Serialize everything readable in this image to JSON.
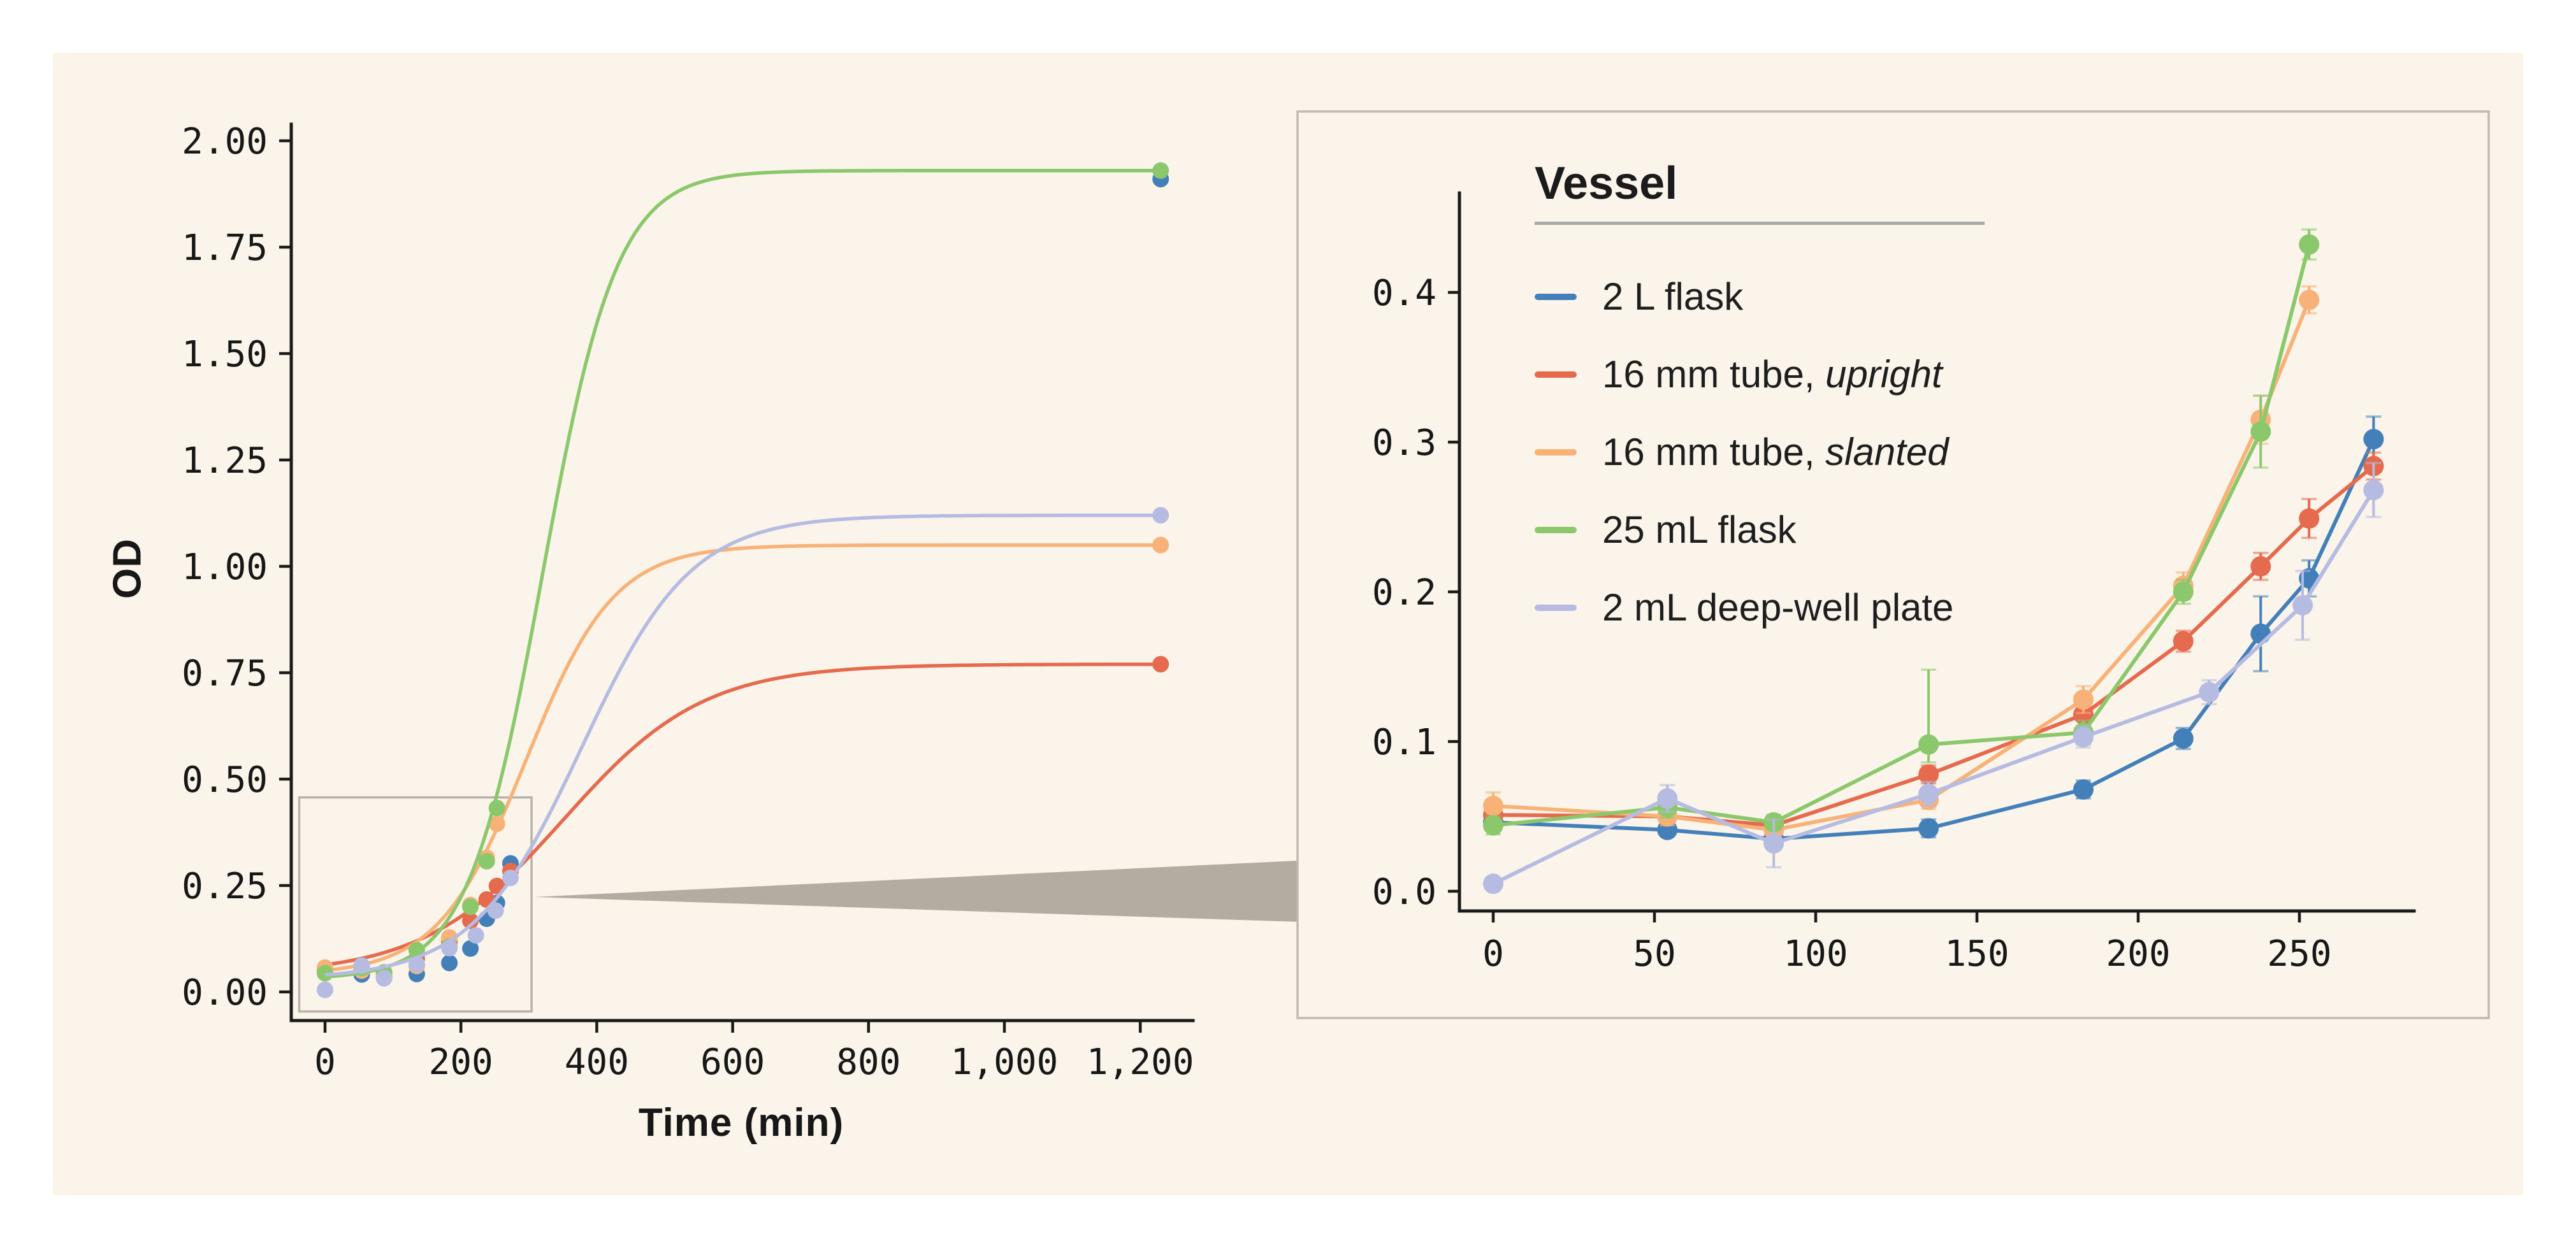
{
  "figure": {
    "background": "#FFFFFF",
    "panel_color": "#FAF4EA",
    "text_color": "#171717",
    "frame_color": "#1A1A1A",
    "zoom_box_color": "#B8B2A9",
    "connector_color": "#B3ACA1",
    "inset_border_color": "#C0BAB1",
    "legend_rule_color": "#A8A8A8"
  },
  "legend": {
    "title": "Vessel",
    "items": [
      {
        "label": "2 L flask",
        "italic": "",
        "color": "#4380BA"
      },
      {
        "label": "16 mm tube, ",
        "italic": "upright",
        "color": "#E66A4D"
      },
      {
        "label": "16 mm tube, ",
        "italic": "slanted",
        "color": "#F8B277"
      },
      {
        "label": "25 mL flask",
        "italic": "",
        "color": "#8BC86C"
      },
      {
        "label": "2 mL deep-well plate",
        "italic": "",
        "color": "#B6BBE2"
      }
    ]
  },
  "chart_data": [
    {
      "id": "main-growth-curves",
      "type": "line",
      "title": "",
      "xlabel": "Time (min)",
      "ylabel": "OD",
      "xlim": [
        -60,
        1280
      ],
      "ylim": [
        -0.07,
        2.08
      ],
      "grid": false,
      "x_ticks": [
        {
          "v": 0,
          "label": "0"
        },
        {
          "v": 200,
          "label": "200"
        },
        {
          "v": 400,
          "label": "400"
        },
        {
          "v": 600,
          "label": "600"
        },
        {
          "v": 800,
          "label": "800"
        },
        {
          "v": 1000,
          "label": "1,000"
        },
        {
          "v": 1200,
          "label": "1,200"
        }
      ],
      "y_ticks": [
        {
          "v": 0.0,
          "label": "0.00"
        },
        {
          "v": 0.25,
          "label": "0.25"
        },
        {
          "v": 0.5,
          "label": "0.50"
        },
        {
          "v": 0.75,
          "label": "0.75"
        },
        {
          "v": 1.0,
          "label": "1.00"
        },
        {
          "v": 1.25,
          "label": "1.25"
        },
        {
          "v": 1.5,
          "label": "1.50"
        },
        {
          "v": 1.75,
          "label": "1.75"
        },
        {
          "v": 2.0,
          "label": "2.00"
        }
      ],
      "zoom_rect": {
        "t_min": -38,
        "t_max": 304,
        "od_min": -0.046,
        "od_max": 0.457
      },
      "series": [
        {
          "name": "2 L flask",
          "color": "#4380BA",
          "points": [
            [
              0,
              0.046
            ],
            [
              54,
              0.041
            ],
            [
              87,
              0.035
            ],
            [
              135,
              0.042
            ],
            [
              183,
              0.068
            ],
            [
              214,
              0.102
            ],
            [
              238,
              0.172
            ],
            [
              253,
              0.209
            ],
            [
              273,
              0.302
            ],
            [
              1230,
              1.91
            ]
          ],
          "fit": null
        },
        {
          "name": "16 mm tube, upright",
          "color": "#E66A4D",
          "points": [
            [
              0,
              0.051
            ],
            [
              54,
              0.05
            ],
            [
              87,
              0.044
            ],
            [
              135,
              0.078
            ],
            [
              183,
              0.118
            ],
            [
              214,
              0.167
            ],
            [
              238,
              0.217
            ],
            [
              253,
              0.249
            ],
            [
              273,
              0.284
            ],
            [
              1230,
              0.77
            ]
          ],
          "fit": {
            "base": 0.04,
            "amp": 0.73,
            "mid": 351,
            "k": 0.0097
          }
        },
        {
          "name": "16 mm tube, slanted",
          "color": "#F8B277",
          "points": [
            [
              0,
              0.057
            ],
            [
              54,
              0.05
            ],
            [
              87,
              0.041
            ],
            [
              135,
              0.061
            ],
            [
              183,
              0.128
            ],
            [
              214,
              0.204
            ],
            [
              238,
              0.315
            ],
            [
              253,
              0.395
            ],
            [
              1230,
              1.05
            ]
          ],
          "fit": {
            "base": 0.04,
            "amp": 1.01,
            "mid": 296,
            "k": 0.0154
          }
        },
        {
          "name": "25 mL flask",
          "color": "#8BC86C",
          "points": [
            [
              0,
              0.044
            ],
            [
              54,
              0.056
            ],
            [
              87,
              0.046
            ],
            [
              135,
              0.098
            ],
            [
              183,
              0.106
            ],
            [
              214,
              0.2
            ],
            [
              238,
              0.307
            ],
            [
              253,
              0.432
            ],
            [
              1230,
              1.93
            ]
          ],
          "fit": {
            "base": 0.03,
            "amp": 1.9,
            "mid": 320,
            "k": 0.0182
          }
        },
        {
          "name": "2 mL deep-well plate",
          "color": "#B6BBE2",
          "points": [
            [
              0,
              0.005
            ],
            [
              54,
              0.062
            ],
            [
              87,
              0.032
            ],
            [
              135,
              0.065
            ],
            [
              183,
              0.103
            ],
            [
              222,
              0.133
            ],
            [
              251,
              0.191
            ],
            [
              273,
              0.268
            ],
            [
              1230,
              1.12
            ]
          ],
          "fit": {
            "base": 0.03,
            "amp": 1.09,
            "mid": 378,
            "k": 0.0124
          }
        }
      ]
    },
    {
      "id": "inset-early-phase",
      "type": "line",
      "title": "",
      "xlabel": "",
      "ylabel": "",
      "xlim": [
        -12,
        285
      ],
      "ylim": [
        -0.014,
        0.465
      ],
      "grid": false,
      "x_ticks": [
        {
          "v": 0,
          "label": "0"
        },
        {
          "v": 50,
          "label": "50"
        },
        {
          "v": 100,
          "label": "100"
        },
        {
          "v": 150,
          "label": "150"
        },
        {
          "v": 200,
          "label": "200"
        },
        {
          "v": 250,
          "label": "250"
        }
      ],
      "y_ticks": [
        {
          "v": 0.0,
          "label": "0.0"
        },
        {
          "v": 0.1,
          "label": "0.1"
        },
        {
          "v": 0.2,
          "label": "0.2"
        },
        {
          "v": 0.3,
          "label": "0.3"
        },
        {
          "v": 0.4,
          "label": "0.4"
        }
      ],
      "series": [
        {
          "name": "2 L flask",
          "color": "#4380BA",
          "points": [
            [
              0,
              0.046
            ],
            [
              54,
              0.041
            ],
            [
              87,
              0.035
            ],
            [
              135,
              0.042
            ],
            [
              183,
              0.068
            ],
            [
              214,
              0.102
            ],
            [
              238,
              0.172
            ],
            [
              253,
              0.209
            ],
            [
              273,
              0.302
            ]
          ],
          "err": [
            0.004,
            0.004,
            0.004,
            0.006,
            0.006,
            0.007,
            0.025,
            0.012,
            0.015
          ]
        },
        {
          "name": "16 mm tube, upright",
          "color": "#E66A4D",
          "points": [
            [
              0,
              0.051
            ],
            [
              54,
              0.05
            ],
            [
              87,
              0.044
            ],
            [
              135,
              0.078
            ],
            [
              183,
              0.118
            ],
            [
              214,
              0.167
            ],
            [
              238,
              0.217
            ],
            [
              253,
              0.249
            ],
            [
              273,
              0.284
            ]
          ],
          "err": [
            0.006,
            0.004,
            0.004,
            0.006,
            0.008,
            0.007,
            0.009,
            0.013,
            0.009
          ]
        },
        {
          "name": "16 mm tube, slanted",
          "color": "#F8B277",
          "points": [
            [
              0,
              0.057
            ],
            [
              54,
              0.05
            ],
            [
              87,
              0.041
            ],
            [
              135,
              0.061
            ],
            [
              183,
              0.128
            ],
            [
              214,
              0.204
            ],
            [
              238,
              0.315
            ],
            [
              253,
              0.395
            ]
          ],
          "err": [
            0.009,
            0.006,
            0.005,
            0.006,
            0.009,
            0.009,
            0.016,
            0.009
          ]
        },
        {
          "name": "25 mL flask",
          "color": "#8BC86C",
          "points": [
            [
              0,
              0.044
            ],
            [
              54,
              0.056
            ],
            [
              87,
              0.046
            ],
            [
              135,
              0.098
            ],
            [
              183,
              0.106
            ],
            [
              214,
              0.2
            ],
            [
              238,
              0.307
            ],
            [
              253,
              0.432
            ]
          ],
          "err": [
            0.006,
            0.007,
            0.005,
            0.05,
            0.008,
            0.008,
            0.024,
            0.01
          ],
          "err_lo": [
            0.006,
            0.007,
            0.005,
            0.012,
            0.008,
            0.008,
            0.024,
            0.01
          ]
        },
        {
          "name": "2 mL deep-well plate",
          "color": "#B6BBE2",
          "points": [
            [
              0,
              0.005
            ],
            [
              54,
              0.062
            ],
            [
              87,
              0.032
            ],
            [
              135,
              0.065
            ],
            [
              183,
              0.103
            ],
            [
              222,
              0.133
            ],
            [
              251,
              0.191
            ],
            [
              273,
              0.268
            ]
          ],
          "err": [
            0.004,
            0.009,
            0.016,
            0.008,
            0.007,
            0.008,
            0.023,
            0.018
          ]
        }
      ]
    }
  ]
}
